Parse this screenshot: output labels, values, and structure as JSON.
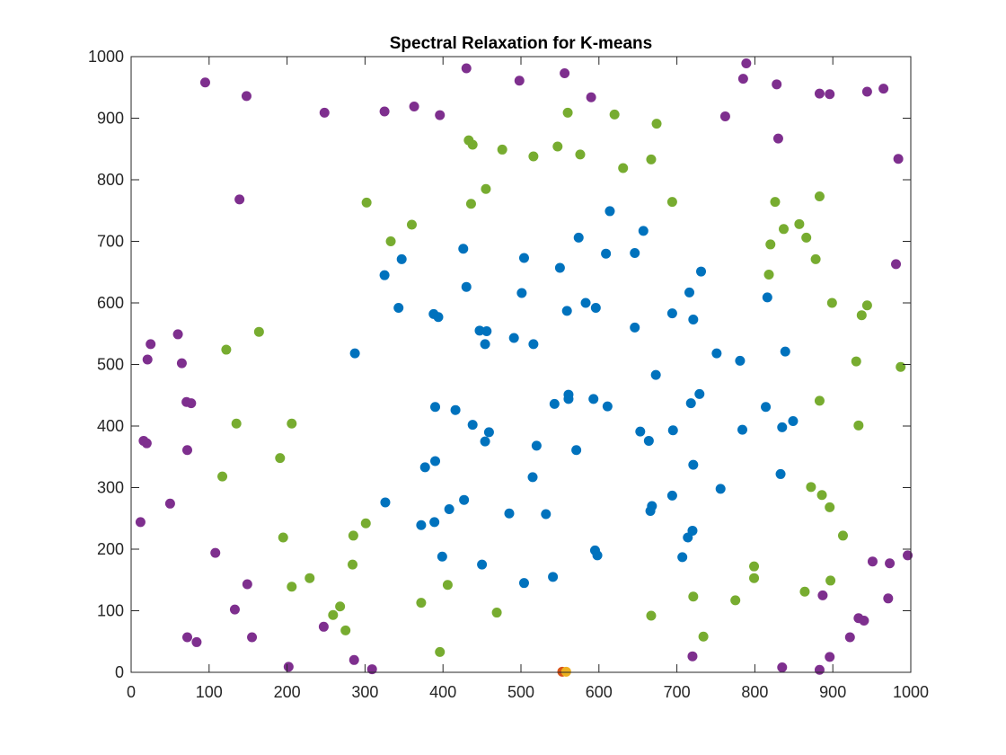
{
  "chart_data": {
    "type": "scatter",
    "title": "Spectral Relaxation for K-means",
    "xlabel": "",
    "ylabel": "",
    "xlim": [
      0,
      1000
    ],
    "ylim": [
      0,
      1000
    ],
    "xticks": [
      "0",
      "100",
      "200",
      "300",
      "400",
      "500",
      "600",
      "700",
      "800",
      "900",
      "1000"
    ],
    "yticks": [
      "0",
      "100",
      "200",
      "300",
      "400",
      "500",
      "600",
      "700",
      "800",
      "900",
      "1000"
    ],
    "grid": false,
    "legend": "none",
    "series": [
      {
        "color": "#0072BD",
        "points": [
          [
            287,
            518
          ],
          [
            325,
            645
          ],
          [
            343,
            592
          ],
          [
            347,
            671
          ],
          [
            326,
            276
          ],
          [
            377,
            333
          ],
          [
            372,
            239
          ],
          [
            388,
            582
          ],
          [
            390,
            431
          ],
          [
            390,
            343
          ],
          [
            389,
            244
          ],
          [
            394,
            577
          ],
          [
            399,
            188
          ],
          [
            408,
            265
          ],
          [
            416,
            426
          ],
          [
            426,
            688
          ],
          [
            427,
            280
          ],
          [
            430,
            626
          ],
          [
            438,
            402
          ],
          [
            447,
            555
          ],
          [
            450,
            175
          ],
          [
            454,
            533
          ],
          [
            456,
            554
          ],
          [
            454,
            375
          ],
          [
            459,
            390
          ],
          [
            485,
            258
          ],
          [
            491,
            543
          ],
          [
            501,
            616
          ],
          [
            504,
            673
          ],
          [
            504,
            145
          ],
          [
            515,
            317
          ],
          [
            516,
            533
          ],
          [
            520,
            368
          ],
          [
            532,
            257
          ],
          [
            541,
            155
          ],
          [
            543,
            436
          ],
          [
            550,
            657
          ],
          [
            559,
            587
          ],
          [
            561,
            451
          ],
          [
            561,
            444
          ],
          [
            571,
            361
          ],
          [
            574,
            706
          ],
          [
            583,
            600
          ],
          [
            593,
            444
          ],
          [
            595,
            198
          ],
          [
            598,
            190
          ],
          [
            596,
            592
          ],
          [
            609,
            680
          ],
          [
            611,
            432
          ],
          [
            614,
            749
          ],
          [
            646,
            560
          ],
          [
            646,
            681
          ],
          [
            653,
            391
          ],
          [
            657,
            717
          ],
          [
            664,
            376
          ],
          [
            666,
            262
          ],
          [
            668,
            270
          ],
          [
            673,
            483
          ],
          [
            694,
            583
          ],
          [
            695,
            393
          ],
          [
            694,
            287
          ],
          [
            707,
            187
          ],
          [
            714,
            219
          ],
          [
            716,
            617
          ],
          [
            718,
            437
          ],
          [
            720,
            230
          ],
          [
            721,
            573
          ],
          [
            721,
            337
          ],
          [
            729,
            452
          ],
          [
            731,
            651
          ],
          [
            751,
            518
          ],
          [
            756,
            298
          ],
          [
            781,
            506
          ],
          [
            784,
            394
          ],
          [
            814,
            431
          ],
          [
            816,
            609
          ],
          [
            833,
            322
          ],
          [
            835,
            398
          ],
          [
            839,
            521
          ],
          [
            849,
            408
          ]
        ]
      },
      {
        "color": "#77AC30",
        "points": [
          [
            122,
            524
          ],
          [
            117,
            318
          ],
          [
            135,
            404
          ],
          [
            164,
            553
          ],
          [
            191,
            348
          ],
          [
            195,
            219
          ],
          [
            206,
            404
          ],
          [
            206,
            139
          ],
          [
            229,
            153
          ],
          [
            259,
            93
          ],
          [
            268,
            107
          ],
          [
            275,
            68
          ],
          [
            284,
            175
          ],
          [
            285,
            222
          ],
          [
            302,
            763
          ],
          [
            301,
            242
          ],
          [
            333,
            700
          ],
          [
            360,
            727
          ],
          [
            372,
            113
          ],
          [
            396,
            33
          ],
          [
            406,
            142
          ],
          [
            433,
            864
          ],
          [
            436,
            761
          ],
          [
            438,
            857
          ],
          [
            455,
            785
          ],
          [
            469,
            97
          ],
          [
            476,
            849
          ],
          [
            516,
            838
          ],
          [
            547,
            854
          ],
          [
            560,
            909
          ],
          [
            576,
            841
          ],
          [
            620,
            906
          ],
          [
            631,
            819
          ],
          [
            667,
            833
          ],
          [
            667,
            92
          ],
          [
            674,
            891
          ],
          [
            694,
            764
          ],
          [
            721,
            123
          ],
          [
            734,
            58
          ],
          [
            775,
            117
          ],
          [
            799,
            172
          ],
          [
            799,
            153
          ],
          [
            820,
            695
          ],
          [
            818,
            646
          ],
          [
            826,
            764
          ],
          [
            837,
            720
          ],
          [
            857,
            728
          ],
          [
            864,
            131
          ],
          [
            866,
            706
          ],
          [
            872,
            301
          ],
          [
            878,
            671
          ],
          [
            883,
            773
          ],
          [
            883,
            441
          ],
          [
            886,
            288
          ],
          [
            896,
            268
          ],
          [
            897,
            149
          ],
          [
            899,
            600
          ],
          [
            913,
            222
          ],
          [
            930,
            505
          ],
          [
            933,
            401
          ],
          [
            937,
            580
          ],
          [
            944,
            596
          ],
          [
            987,
            496
          ]
        ]
      },
      {
        "color": "#7E2F8E",
        "points": [
          [
            12,
            244
          ],
          [
            16,
            376
          ],
          [
            20,
            372
          ],
          [
            21,
            508
          ],
          [
            25,
            533
          ],
          [
            50,
            274
          ],
          [
            60,
            549
          ],
          [
            65,
            502
          ],
          [
            71,
            439
          ],
          [
            72,
            57
          ],
          [
            72,
            361
          ],
          [
            77,
            437
          ],
          [
            84,
            49
          ],
          [
            95,
            958
          ],
          [
            108,
            194
          ],
          [
            133,
            102
          ],
          [
            139,
            768
          ],
          [
            148,
            936
          ],
          [
            149,
            143
          ],
          [
            155,
            57
          ],
          [
            202,
            9
          ],
          [
            248,
            909
          ],
          [
            247,
            74
          ],
          [
            286,
            20
          ],
          [
            309,
            5
          ],
          [
            325,
            911
          ],
          [
            363,
            919
          ],
          [
            396,
            905
          ],
          [
            430,
            981
          ],
          [
            498,
            961
          ],
          [
            556,
            973
          ],
          [
            590,
            934
          ],
          [
            762,
            903
          ],
          [
            785,
            964
          ],
          [
            789,
            989
          ],
          [
            720,
            26
          ],
          [
            828,
            955
          ],
          [
            830,
            867
          ],
          [
            835,
            8
          ],
          [
            883,
            940
          ],
          [
            883,
            4
          ],
          [
            887,
            125
          ],
          [
            896,
            939
          ],
          [
            896,
            25
          ],
          [
            922,
            57
          ],
          [
            933,
            88
          ],
          [
            940,
            84
          ],
          [
            944,
            943
          ],
          [
            951,
            180
          ],
          [
            965,
            948
          ],
          [
            971,
            120
          ],
          [
            973,
            177
          ],
          [
            981,
            663
          ],
          [
            984,
            834
          ],
          [
            996,
            190
          ]
        ]
      },
      {
        "color": "#D95319",
        "points": [
          [
            553,
            1
          ]
        ]
      },
      {
        "color": "#EDB120",
        "points": [
          [
            558,
            1
          ]
        ]
      }
    ]
  }
}
